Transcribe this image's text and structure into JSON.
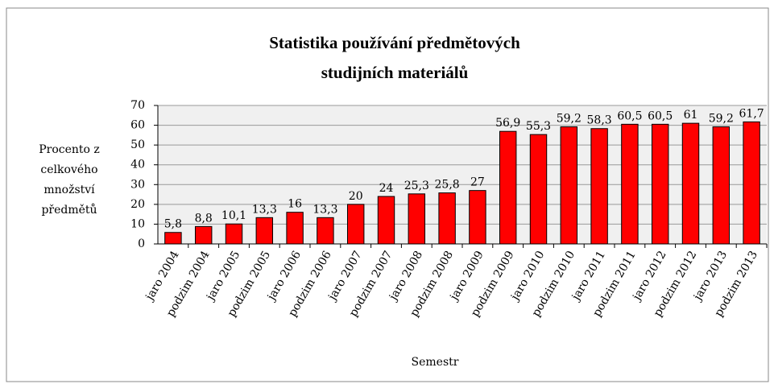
{
  "chart_data": {
    "type": "bar",
    "title": [
      "Statistika používání předmětových",
      "studijních materiálů"
    ],
    "x_label": "Semestr",
    "y_label": [
      "Procento z",
      "celkového",
      "množství",
      "předmětů"
    ],
    "categories": [
      "jaro 2004",
      "podzim 2004",
      "jaro 2005",
      "podzim 2005",
      "jaro 2006",
      "podzim 2006",
      "jaro 2007",
      "podzim 2007",
      "jaro 2008",
      "podzim 2008",
      "jaro 2009",
      "podzim 2009",
      "jaro 2010",
      "podzim 2010",
      "jaro 2011",
      "podzim 2011",
      "jaro 2012",
      "podzim 2012",
      "jaro 2013",
      "podzim 2013"
    ],
    "values": [
      5.8,
      8.8,
      10.1,
      13.3,
      16,
      13.3,
      20,
      24,
      25.3,
      25.8,
      27,
      56.9,
      55.3,
      59.2,
      58.3,
      60.5,
      60.5,
      61,
      59.2,
      61.7
    ],
    "value_labels": [
      "5,8",
      "8,8",
      "10,1",
      "13,3",
      "16",
      "13,3",
      "20",
      "24",
      "25,3",
      "25,8",
      "27",
      "56,9",
      "55,3",
      "59,2",
      "58,3",
      "60,5",
      "60,5",
      "61",
      "59,2",
      "61,7"
    ],
    "color": "#ff0000",
    "ylim": [
      0,
      70
    ],
    "yticks": [
      0,
      10,
      20,
      30,
      40,
      50,
      60,
      70
    ],
    "grid": true
  }
}
